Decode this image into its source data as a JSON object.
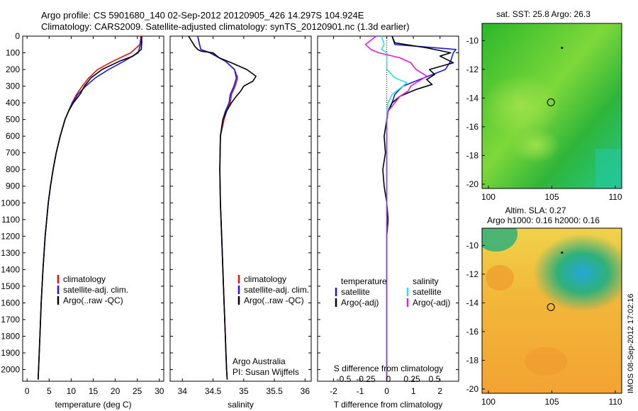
{
  "header": {
    "line1": "Argo profile: CS 5901680_140 02-Sep-2012 20120905_426 14.297S 104.924E",
    "line2": "Climatology: CARS2009. Satellite-adjusted climatology: synTS_20120901.nc (1.3d earlier)"
  },
  "side_label": "IMOS 08-Sep-2012 17:02:16",
  "colors": {
    "climatology": "#dd1111",
    "satellite": "#1a1ae6",
    "argo": "#000000",
    "sal_satellite": "#22e6e6",
    "sal_argo": "#e61ae6",
    "sst_green": "#33b833",
    "sla_orange": "#f5a030"
  },
  "chart_data": [
    {
      "id": "temperature",
      "type": "line",
      "xlabel": "temperature (deg C)",
      "xlim": [
        -1,
        31
      ],
      "xticks": [
        0,
        5,
        10,
        15,
        20,
        25,
        30
      ],
      "ylim": [
        2070,
        0
      ],
      "yticks": [
        0,
        100,
        200,
        300,
        400,
        500,
        600,
        700,
        800,
        900,
        1000,
        1100,
        1200,
        1300,
        1400,
        1500,
        1600,
        1700,
        1800,
        1900,
        2000
      ],
      "legend": [
        {
          "label": "climatology",
          "color": "#dd1111"
        },
        {
          "label": "satellite-adj. clim.",
          "color": "#1a1ae6"
        },
        {
          "label": "Argo(..raw -QC)",
          "color": "#000000"
        }
      ],
      "series": [
        {
          "name": "climatology",
          "color": "#dd1111",
          "depth": [
            0,
            50,
            100,
            150,
            200,
            250,
            300,
            350,
            400,
            450,
            500,
            600,
            700,
            800,
            900,
            1000,
            1200,
            1400,
            1600,
            1800,
            2000,
            2060
          ],
          "values": [
            25.8,
            25.6,
            23.5,
            19.5,
            16.0,
            14.0,
            12.5,
            11.2,
            10.2,
            9.4,
            8.6,
            7.5,
            6.6,
            5.9,
            5.3,
            4.8,
            4.1,
            3.6,
            3.2,
            2.9,
            2.6,
            2.5
          ]
        },
        {
          "name": "satellite-adj. clim.",
          "color": "#1a1ae6",
          "depth": [
            0,
            50,
            100,
            150,
            200,
            250,
            300,
            350,
            400,
            450,
            500,
            600,
            700,
            800,
            900,
            1000,
            1200,
            1400,
            1600,
            1800,
            2000,
            2060
          ],
          "values": [
            26.0,
            25.7,
            25.2,
            22.0,
            18.5,
            15.5,
            13.3,
            11.5,
            10.3,
            9.4,
            8.6,
            7.5,
            6.6,
            5.9,
            5.3,
            4.8,
            4.1,
            3.6,
            3.2,
            2.9,
            2.6,
            2.5
          ]
        },
        {
          "name": "Argo(..raw -QC)",
          "color": "#000000",
          "depth": [
            0,
            40,
            80,
            120,
            150,
            200,
            250,
            300,
            350,
            400,
            450,
            500,
            600,
            700,
            800,
            900,
            1000,
            1200,
            1400,
            1600,
            1800,
            2000,
            2060
          ],
          "values": [
            26.0,
            26.0,
            25.9,
            24.0,
            21.0,
            17.0,
            14.5,
            13.0,
            12.0,
            10.5,
            9.4,
            8.6,
            7.5,
            6.6,
            5.9,
            5.3,
            4.8,
            4.1,
            3.6,
            3.2,
            2.9,
            2.6,
            2.5
          ]
        }
      ]
    },
    {
      "id": "salinity",
      "type": "line",
      "xlabel": "salinity",
      "xlim": [
        33.8,
        36.1
      ],
      "xticks": [
        34,
        34.5,
        35,
        35.5,
        36
      ],
      "ylim": [
        2070,
        0
      ],
      "legend": [
        {
          "label": "climatology",
          "color": "#dd1111"
        },
        {
          "label": "satellite-adj. clim.",
          "color": "#1a1ae6"
        },
        {
          "label": "Argo(..raw -QC)",
          "color": "#000000"
        }
      ],
      "annotations": [
        "Argo Australia",
        "PI: Susan Wijffels"
      ],
      "series": [
        {
          "name": "climatology",
          "color": "#dd1111",
          "depth": [
            0,
            50,
            80,
            100,
            150,
            200,
            250,
            300,
            350,
            400,
            450,
            500,
            600,
            800,
            1000,
            1200,
            1400,
            1600,
            1800,
            2000,
            2060
          ],
          "values": [
            34.25,
            34.28,
            34.3,
            34.45,
            34.7,
            34.85,
            34.9,
            34.86,
            34.8,
            34.78,
            34.72,
            34.68,
            34.62,
            34.61,
            34.62,
            34.64,
            34.66,
            34.68,
            34.7,
            34.72,
            34.73
          ]
        },
        {
          "name": "satellite-adj. clim.",
          "color": "#1a1ae6",
          "depth": [
            0,
            50,
            80,
            100,
            150,
            200,
            250,
            300,
            350,
            400,
            450,
            500,
            600,
            800,
            1000,
            1200,
            1400,
            1600,
            1800,
            2000,
            2060
          ],
          "values": [
            34.25,
            34.28,
            34.3,
            34.45,
            34.7,
            34.85,
            34.88,
            34.84,
            34.78,
            34.76,
            34.7,
            34.66,
            34.62,
            34.61,
            34.62,
            34.64,
            34.66,
            34.68,
            34.7,
            34.72,
            34.73
          ]
        },
        {
          "name": "Argo(..raw -QC)",
          "color": "#000000",
          "depth": [
            0,
            30,
            60,
            80,
            90,
            100,
            130,
            160,
            200,
            240,
            270,
            300,
            330,
            360,
            400,
            450,
            500,
            600,
            800,
            1000,
            1200,
            1400,
            1600,
            1800,
            2000,
            2060
          ],
          "values": [
            34.1,
            34.15,
            34.2,
            34.25,
            34.3,
            34.5,
            34.6,
            34.8,
            35.05,
            35.2,
            35.15,
            35.0,
            34.95,
            34.88,
            34.8,
            34.72,
            34.66,
            34.62,
            34.61,
            34.62,
            34.64,
            34.66,
            34.68,
            34.7,
            34.72,
            34.73
          ]
        }
      ]
    },
    {
      "id": "differences",
      "type": "line",
      "xlabel": "T difference from climatology",
      "xlim": [
        -2.6,
        2.7
      ],
      "xticks": [
        -2,
        -1,
        0,
        1,
        2
      ],
      "top_axis_label": "S difference from climatology",
      "top_ticks": [
        "-0.5",
        "-0.25",
        "0",
        "0.25",
        "0.5"
      ],
      "ylim": [
        2070,
        0
      ],
      "legend_titles": [
        "temperature",
        "salinity"
      ],
      "legend": [
        {
          "label": "satellite",
          "color": "#1a1ae6"
        },
        {
          "label": "Argo(-adj)",
          "color": "#000000"
        },
        {
          "label": "satellite",
          "color": "#22e6e6"
        },
        {
          "label": "Argo(-adj)",
          "color": "#e61ae6"
        }
      ],
      "series": [
        {
          "name": "temperature satellite",
          "color": "#1a1ae6",
          "depth": [
            0,
            50,
            80,
            100,
            150,
            200,
            250,
            300,
            350,
            400,
            450,
            500,
            600,
            800,
            1000,
            1200,
            1600,
            2000,
            2060
          ],
          "values": [
            0.2,
            0.3,
            2.6,
            2.5,
            2.4,
            2.2,
            1.4,
            0.6,
            0.3,
            0.2,
            0.05,
            0.0,
            0.0,
            0.0,
            0.0,
            0.0,
            0.0,
            0.0,
            0.0
          ]
        },
        {
          "name": "temperature Argo(-adj)",
          "color": "#000000",
          "depth": [
            0,
            40,
            70,
            100,
            120,
            160,
            200,
            230,
            260,
            290,
            320,
            360,
            400,
            450,
            500,
            600,
            700,
            800,
            900,
            1000,
            1100,
            1200,
            1400,
            1600,
            1800,
            2000,
            2060
          ],
          "values": [
            0.2,
            0.3,
            1.5,
            2.4,
            2.0,
            2.5,
            1.6,
            1.8,
            1.5,
            1.7,
            1.1,
            0.5,
            0.2,
            0.05,
            0.0,
            -0.1,
            -0.05,
            -0.15,
            -0.1,
            0.0,
            0.05,
            0.0,
            0.0,
            0.0,
            0.0,
            0.0,
            0.0
          ]
        },
        {
          "name": "salinity satellite",
          "color": "#22e6e6",
          "depth": [
            0,
            50,
            80,
            100,
            150,
            200,
            250,
            280,
            300,
            350,
            400,
            450,
            500,
            600,
            800,
            1000,
            1200,
            1600,
            2000,
            2060
          ],
          "values": [
            -0.2,
            -0.1,
            -0.2,
            0.0,
            0.0,
            0.0,
            0.3,
            0.75,
            0.6,
            0.2,
            0.05,
            0.0,
            0.0,
            0.0,
            0.0,
            0.0,
            0.0,
            0.0,
            0.0,
            0.0
          ]
        },
        {
          "name": "salinity Argo(-adj)",
          "color": "#e61ae6",
          "depth": [
            0,
            50,
            80,
            100,
            130,
            160,
            200,
            240,
            270,
            300,
            330,
            360,
            400,
            450,
            500,
            600,
            800,
            1000,
            1200,
            1600,
            2000,
            2060
          ],
          "values": [
            -0.4,
            -0.8,
            -0.6,
            -0.3,
            0.5,
            0.9,
            1.1,
            1.5,
            1.2,
            0.9,
            0.8,
            0.5,
            0.3,
            0.05,
            0.0,
            0.0,
            0.0,
            0.0,
            0.0,
            0.0,
            0.0,
            0.0
          ]
        }
      ]
    },
    {
      "id": "sst_map",
      "type": "heatmap",
      "title": "sat. SST: 25.8 Argo: 26.3",
      "xlim": [
        99.5,
        110.5
      ],
      "ylim": [
        -20.3,
        -8.8
      ],
      "xticks": [
        100,
        105,
        110
      ],
      "yticks": [
        -10,
        -12,
        -14,
        -16,
        -18,
        -20
      ],
      "markers": [
        {
          "lon": 104.924,
          "lat": -14.297
        },
        {
          "lon": 105.8,
          "lat": -10.5
        }
      ]
    },
    {
      "id": "sla_map",
      "type": "heatmap",
      "title_line1": "Altim. SLA: 0.27",
      "title_line2": "Argo h1000: 0.16 h2000: 0.16",
      "xlim": [
        99.5,
        110.5
      ],
      "ylim": [
        -20.3,
        -8.8
      ],
      "xticks": [
        100,
        105,
        110
      ],
      "yticks": [
        -10,
        -12,
        -14,
        -16,
        -18,
        -20
      ],
      "markers": [
        {
          "lon": 104.924,
          "lat": -14.297
        },
        {
          "lon": 105.8,
          "lat": -10.5
        }
      ]
    }
  ]
}
